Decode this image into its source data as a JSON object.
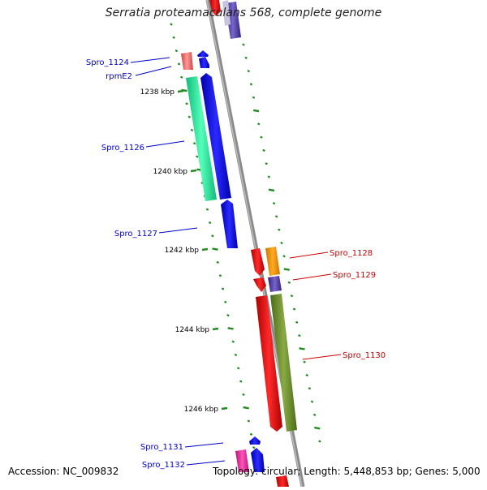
{
  "title": "Serratia proteamaculans 568, complete genome",
  "footer": {
    "accession": "Accession: NC_009832",
    "summary": "Topology: circular; Length: 5,448,853 bp; Genes: 5,000"
  },
  "colors": {
    "forward_label": "#0000cc",
    "reverse_label": "#cc0000",
    "backbone": "#8a8a8a",
    "ticks": "#228b22"
  },
  "kbp_ticks": [
    "1238 kbp",
    "1240 kbp",
    "1242 kbp",
    "1244 kbp",
    "1246 kbp"
  ],
  "forward_genes": [
    {
      "name": "Spro_1124",
      "color": "#ee7777"
    },
    {
      "name": "rpmE2",
      "color": "#0000ee"
    },
    {
      "name": "Spro_1126",
      "color": "#22ee99"
    },
    {
      "name": "Spro_1127",
      "color": "#0000ee"
    },
    {
      "name": "Spro_1131",
      "color": "#ee2299"
    },
    {
      "name": "Spro_1132",
      "color": "#0000ee"
    }
  ],
  "reverse_genes": [
    {
      "name": "Spro_1128",
      "color": "#ee0000"
    },
    {
      "name": "Spro_1129",
      "color": "#5544aa"
    },
    {
      "name": "Spro_1130",
      "color": "#ee0000"
    }
  ]
}
